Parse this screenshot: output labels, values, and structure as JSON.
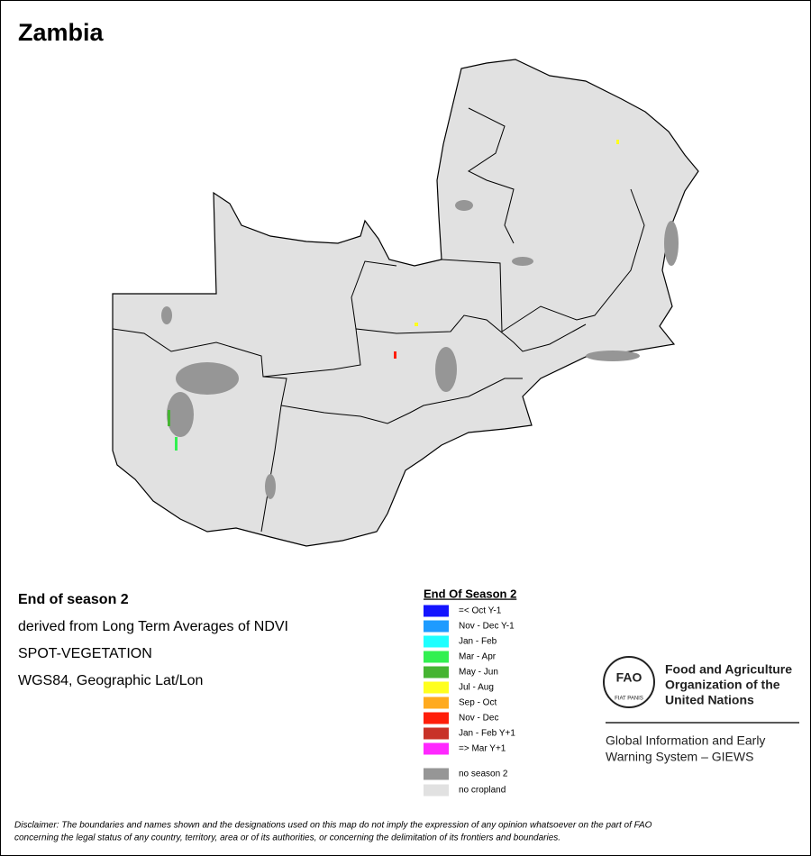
{
  "title": "Zambia",
  "info": [
    "End of season 2",
    "derived from Long Term Averages of NDVI",
    "SPOT-VEGETATION",
    "WGS84, Geographic Lat/Lon"
  ],
  "legend": {
    "title": "End Of Season 2",
    "items": [
      {
        "label": "=< Oct Y-1",
        "color": "#1414ff"
      },
      {
        "label": "Nov - Dec Y-1",
        "color": "#1e9bff"
      },
      {
        "label": "Jan - Feb",
        "color": "#1effff"
      },
      {
        "label": "Mar - Apr",
        "color": "#32f050"
      },
      {
        "label": "May - Jun",
        "color": "#46b432"
      },
      {
        "label": "Jul - Aug",
        "color": "#ffff1e"
      },
      {
        "label": "Sep - Oct",
        "color": "#ffaa1e"
      },
      {
        "label": "Nov - Dec",
        "color": "#ff1e0a"
      },
      {
        "label": "Jan - Feb Y+1",
        "color": "#c83228"
      },
      {
        "label": "=> Mar Y+1",
        "color": "#ff28ff"
      }
    ],
    "extra": [
      {
        "label": "no season 2",
        "color": "#969696"
      },
      {
        "label": "no cropland",
        "color": "#e1e1e1"
      }
    ]
  },
  "logo": {
    "emblem": "FAO",
    "motto": "FIAT PANIS",
    "org": [
      "Food and Agriculture",
      "Organization of the",
      "United Nations"
    ],
    "system": [
      "Global Information and Early",
      "Warning System – GIEWS"
    ]
  },
  "disclaimer": [
    "Disclaimer: The boundaries and names shown and the designations used on this map do not imply the expression of any opinion whatsoever on the part of FAO",
    "concerning the legal status of any country, territory, area or of its authorities, or concerning the delimitation of its frontiers and boundaries."
  ]
}
